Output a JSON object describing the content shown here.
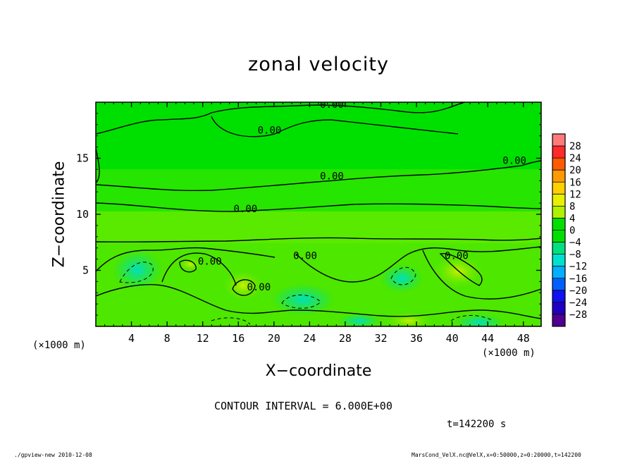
{
  "title": "zonal velocity",
  "xlabel": "X−coordinate",
  "ylabel": "Z−coordinate",
  "xunit_left": "(×1000 m)",
  "xunit_right": "(×1000 m)",
  "contour_interval": "CONTOUR INTERVAL = 6.000E+00",
  "time_label": "t=142200 s",
  "footer_left": "./gpview-new   2010-12-08",
  "footer_right": "MarsCond_VelX.nc@VelX,x=0:50000,z=0:20000,t=142200",
  "colors": {
    "background": "#00e000",
    "frame": "#000000"
  },
  "chart_data": {
    "type": "heatmap",
    "title": "zonal velocity",
    "xlabel": "X−coordinate",
    "ylabel": "Z−coordinate",
    "xlim": [
      0,
      50
    ],
    "ylim": [
      0,
      20
    ],
    "x_ticks": [
      4,
      8,
      12,
      16,
      20,
      24,
      28,
      32,
      36,
      40,
      44,
      48
    ],
    "y_ticks": [
      5,
      10,
      15
    ],
    "contour_labels": [
      {
        "text": "0.00",
        "x": 26.5,
        "y": 19.5
      },
      {
        "text": "0.00",
        "x": 19.5,
        "y": 17.2
      },
      {
        "text": "0.00",
        "x": 26.5,
        "y": 13.1
      },
      {
        "text": "0.00",
        "x": 16.8,
        "y": 10.2
      },
      {
        "text": "0.00",
        "x": 47.0,
        "y": 14.5
      },
      {
        "text": "0.00",
        "x": 12.8,
        "y": 5.5
      },
      {
        "text": "0.00",
        "x": 23.5,
        "y": 6.0
      },
      {
        "text": "0.00",
        "x": 40.5,
        "y": 6.0
      },
      {
        "text": "0.00",
        "x": 18.3,
        "y": 3.2
      }
    ],
    "colorbar": {
      "levels": [
        28,
        24,
        20,
        16,
        12,
        8,
        4,
        0,
        -4,
        -8,
        -12,
        -16,
        -20,
        -24,
        -28
      ],
      "colors": [
        "#ff7a7a",
        "#ff2a2a",
        "#ff5a00",
        "#ff9a00",
        "#ffd000",
        "#e8f000",
        "#b0f000",
        "#00e000",
        "#00e000",
        "#00e080",
        "#00e0d0",
        "#00b0ff",
        "#0060ff",
        "#1010f0",
        "#2000c0",
        "#500090"
      ]
    }
  }
}
